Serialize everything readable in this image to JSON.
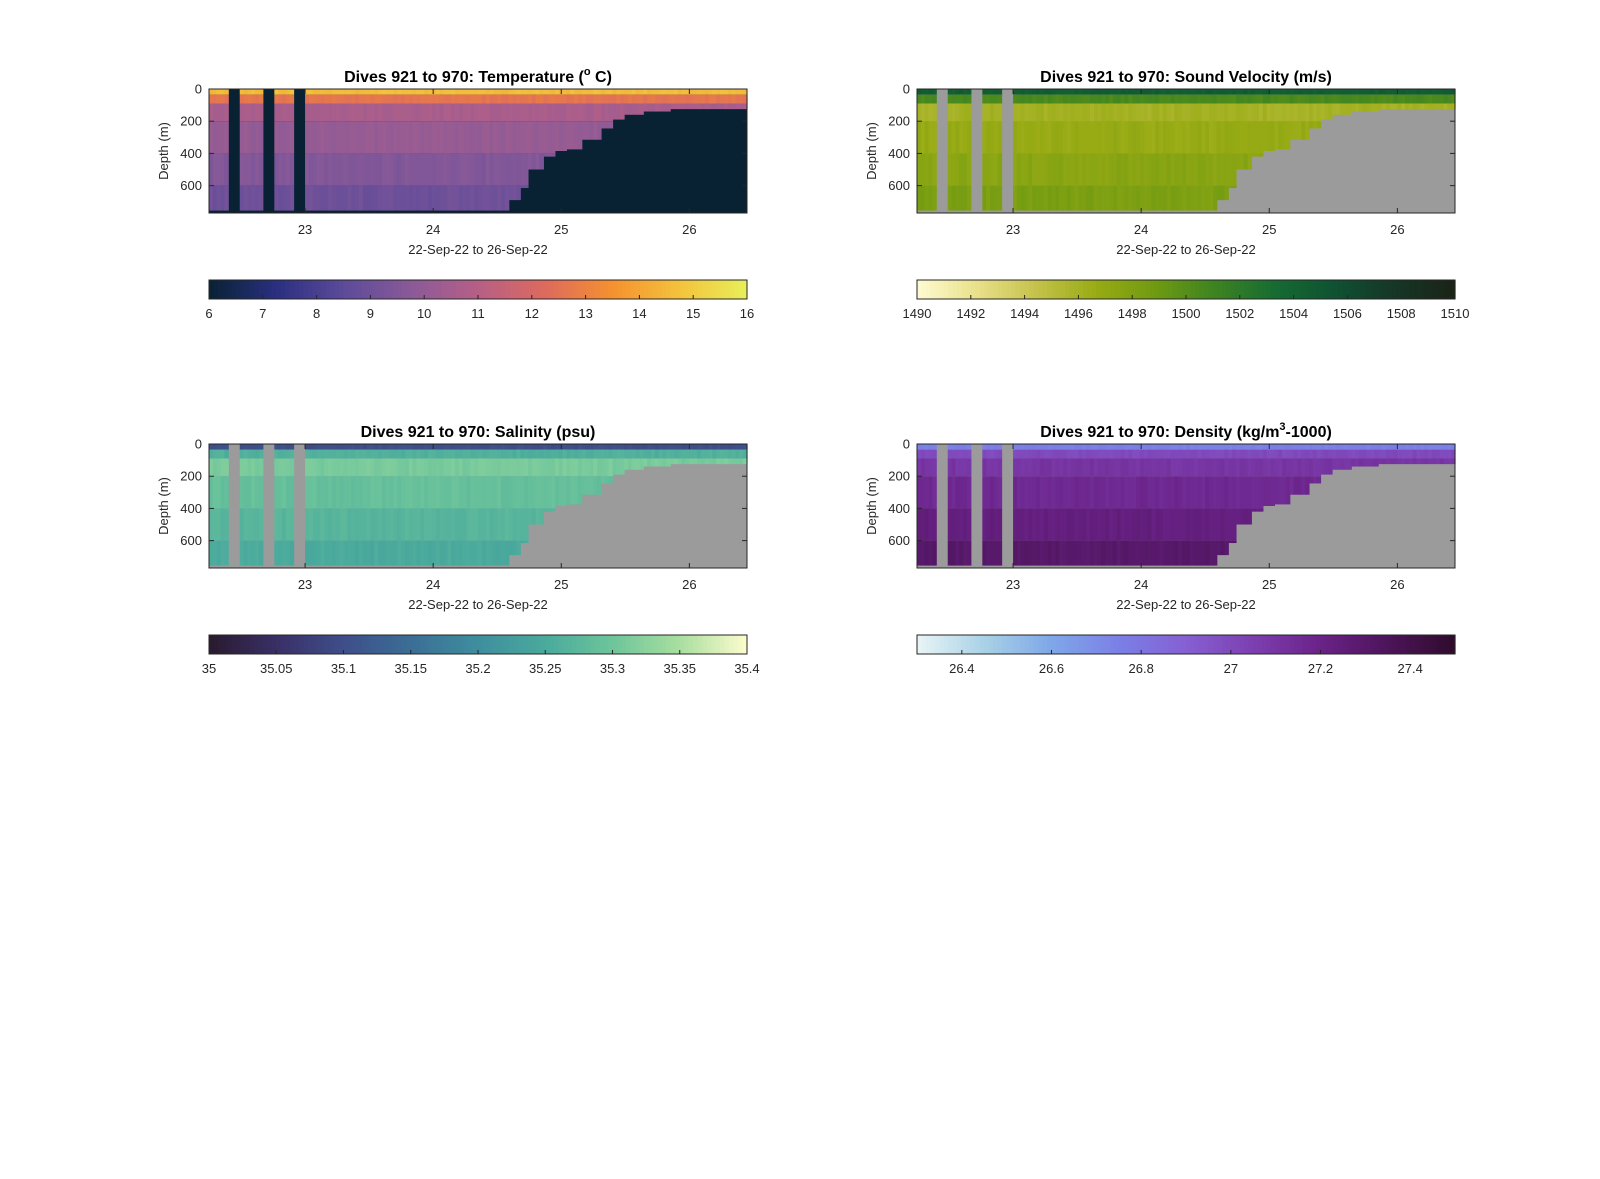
{
  "figure": {
    "background": "#ffffff",
    "nodata_color": "#9b9b9b",
    "depth_max": 770
  },
  "chart_data": [
    {
      "type": "heatmap",
      "title": "Dives 921 to 970: Temperature (° C)",
      "title_parts": {
        "pre": "Dives 921 to 970: Temperature (",
        "sup": "o",
        "post": " C)"
      },
      "xlabel": "22-Sep-22 to 26-Sep-22",
      "ylabel": "Depth (m)",
      "xlim": [
        22.25,
        26.45
      ],
      "ylim": [
        770,
        0
      ],
      "x_ticks": [
        23,
        24,
        25,
        26
      ],
      "x_tick_labels": [
        "23",
        "24",
        "25",
        "26"
      ],
      "y_ticks": [
        0,
        200,
        400,
        600
      ],
      "y_tick_labels": [
        "0",
        "200",
        "400",
        "600"
      ],
      "nodata_color": "#082233",
      "colorbar": {
        "range": [
          6,
          16
        ],
        "ticks": [
          6,
          7,
          8,
          9,
          10,
          11,
          12,
          13,
          14,
          15,
          16
        ],
        "tick_labels": [
          "6",
          "7",
          "8",
          "9",
          "10",
          "11",
          "12",
          "13",
          "14",
          "15",
          "16"
        ],
        "colors": [
          "#082233",
          "#2a2f80",
          "#5c4a9a",
          "#8a5a98",
          "#b65f86",
          "#dd6a5e",
          "#f5912f",
          "#f4c23c",
          "#e8f05a"
        ]
      },
      "field": {
        "surface_value": 14.6,
        "layer_value": 12.6,
        "upper_value": 10.6,
        "deep_value": 9.0
      }
    },
    {
      "type": "heatmap",
      "title": "Dives 921 to 970: Sound Velocity (m/s)",
      "xlabel": "22-Sep-22 to 26-Sep-22",
      "ylabel": "Depth (m)",
      "xlim": [
        22.25,
        26.45
      ],
      "ylim": [
        770,
        0
      ],
      "x_ticks": [
        23,
        24,
        25,
        26
      ],
      "x_tick_labels": [
        "23",
        "24",
        "25",
        "26"
      ],
      "y_ticks": [
        0,
        200,
        400,
        600
      ],
      "y_tick_labels": [
        "0",
        "200",
        "400",
        "600"
      ],
      "colorbar": {
        "range": [
          1490,
          1510
        ],
        "ticks": [
          1490,
          1492,
          1494,
          1496,
          1498,
          1500,
          1502,
          1504,
          1506,
          1508,
          1510
        ],
        "tick_labels": [
          "1490",
          "1492",
          "1494",
          "1496",
          "1498",
          "1500",
          "1502",
          "1504",
          "1506",
          "1508",
          "1510"
        ],
        "colors": [
          "#fefbd2",
          "#e9e08a",
          "#c4c24a",
          "#98ab14",
          "#6f9a12",
          "#3d8322",
          "#166b32",
          "#0f5132",
          "#163626",
          "#1a2316"
        ]
      },
      "field": {
        "surface_value": 1504.5,
        "layer_value": 1500.5,
        "upper_value": 1496.0,
        "deep_value": 1498.2
      }
    },
    {
      "type": "heatmap",
      "title": "Dives 921 to 970: Salinity (psu)",
      "xlabel": "22-Sep-22 to 26-Sep-22",
      "ylabel": "Depth (m)",
      "xlim": [
        22.25,
        26.45
      ],
      "ylim": [
        770,
        0
      ],
      "x_ticks": [
        23,
        24,
        25,
        26
      ],
      "x_tick_labels": [
        "23",
        "24",
        "25",
        "26"
      ],
      "y_ticks": [
        0,
        200,
        400,
        600
      ],
      "y_tick_labels": [
        "0",
        "200",
        "400",
        "600"
      ],
      "colorbar": {
        "range": [
          35,
          35.4
        ],
        "ticks": [
          35,
          35.05,
          35.1,
          35.15,
          35.2,
          35.25,
          35.3,
          35.35,
          35.4
        ],
        "tick_labels": [
          "35",
          "35.05",
          "35.1",
          "35.15",
          "35.2",
          "35.25",
          "35.3",
          "35.35",
          "35.4"
        ],
        "colors": [
          "#291a2e",
          "#3a2f66",
          "#3e4e8a",
          "#3b6e95",
          "#3e8e9e",
          "#4aaa9c",
          "#6dc59b",
          "#a9de9f",
          "#fdfccd"
        ]
      },
      "field": {
        "surface_value": 35.1,
        "layer_value": 35.26,
        "upper_value": 35.31,
        "deep_value": 35.25
      }
    },
    {
      "type": "heatmap",
      "title": "Dives 921 to 970: Density (kg/m3-1000)",
      "title_parts": {
        "pre": "Dives 921 to 970: Density (kg/m",
        "sup": "3",
        "post": "-1000)"
      },
      "xlabel": "22-Sep-22 to 26-Sep-22",
      "ylabel": "Depth (m)",
      "xlim": [
        22.25,
        26.45
      ],
      "ylim": [
        770,
        0
      ],
      "x_ticks": [
        23,
        24,
        25,
        26
      ],
      "x_tick_labels": [
        "23",
        "24",
        "25",
        "26"
      ],
      "y_ticks": [
        0,
        200,
        400,
        600
      ],
      "y_tick_labels": [
        "0",
        "200",
        "400",
        "600"
      ],
      "colorbar": {
        "range": [
          26.3,
          27.5
        ],
        "ticks": [
          26.4,
          26.6,
          26.8,
          27,
          27.2,
          27.4
        ],
        "tick_labels": [
          "26.4",
          "26.6",
          "26.8",
          "27",
          "27.2",
          "27.4"
        ],
        "colors": [
          "#e9f5f6",
          "#a9d1e6",
          "#7ea7e8",
          "#7b80e6",
          "#8560d3",
          "#7d3fb0",
          "#6a2288",
          "#4d145a",
          "#2f0b2c"
        ]
      },
      "field": {
        "surface_value": 26.75,
        "layer_value": 27.0,
        "upper_value": 27.1,
        "deep_value": 27.3
      }
    }
  ]
}
